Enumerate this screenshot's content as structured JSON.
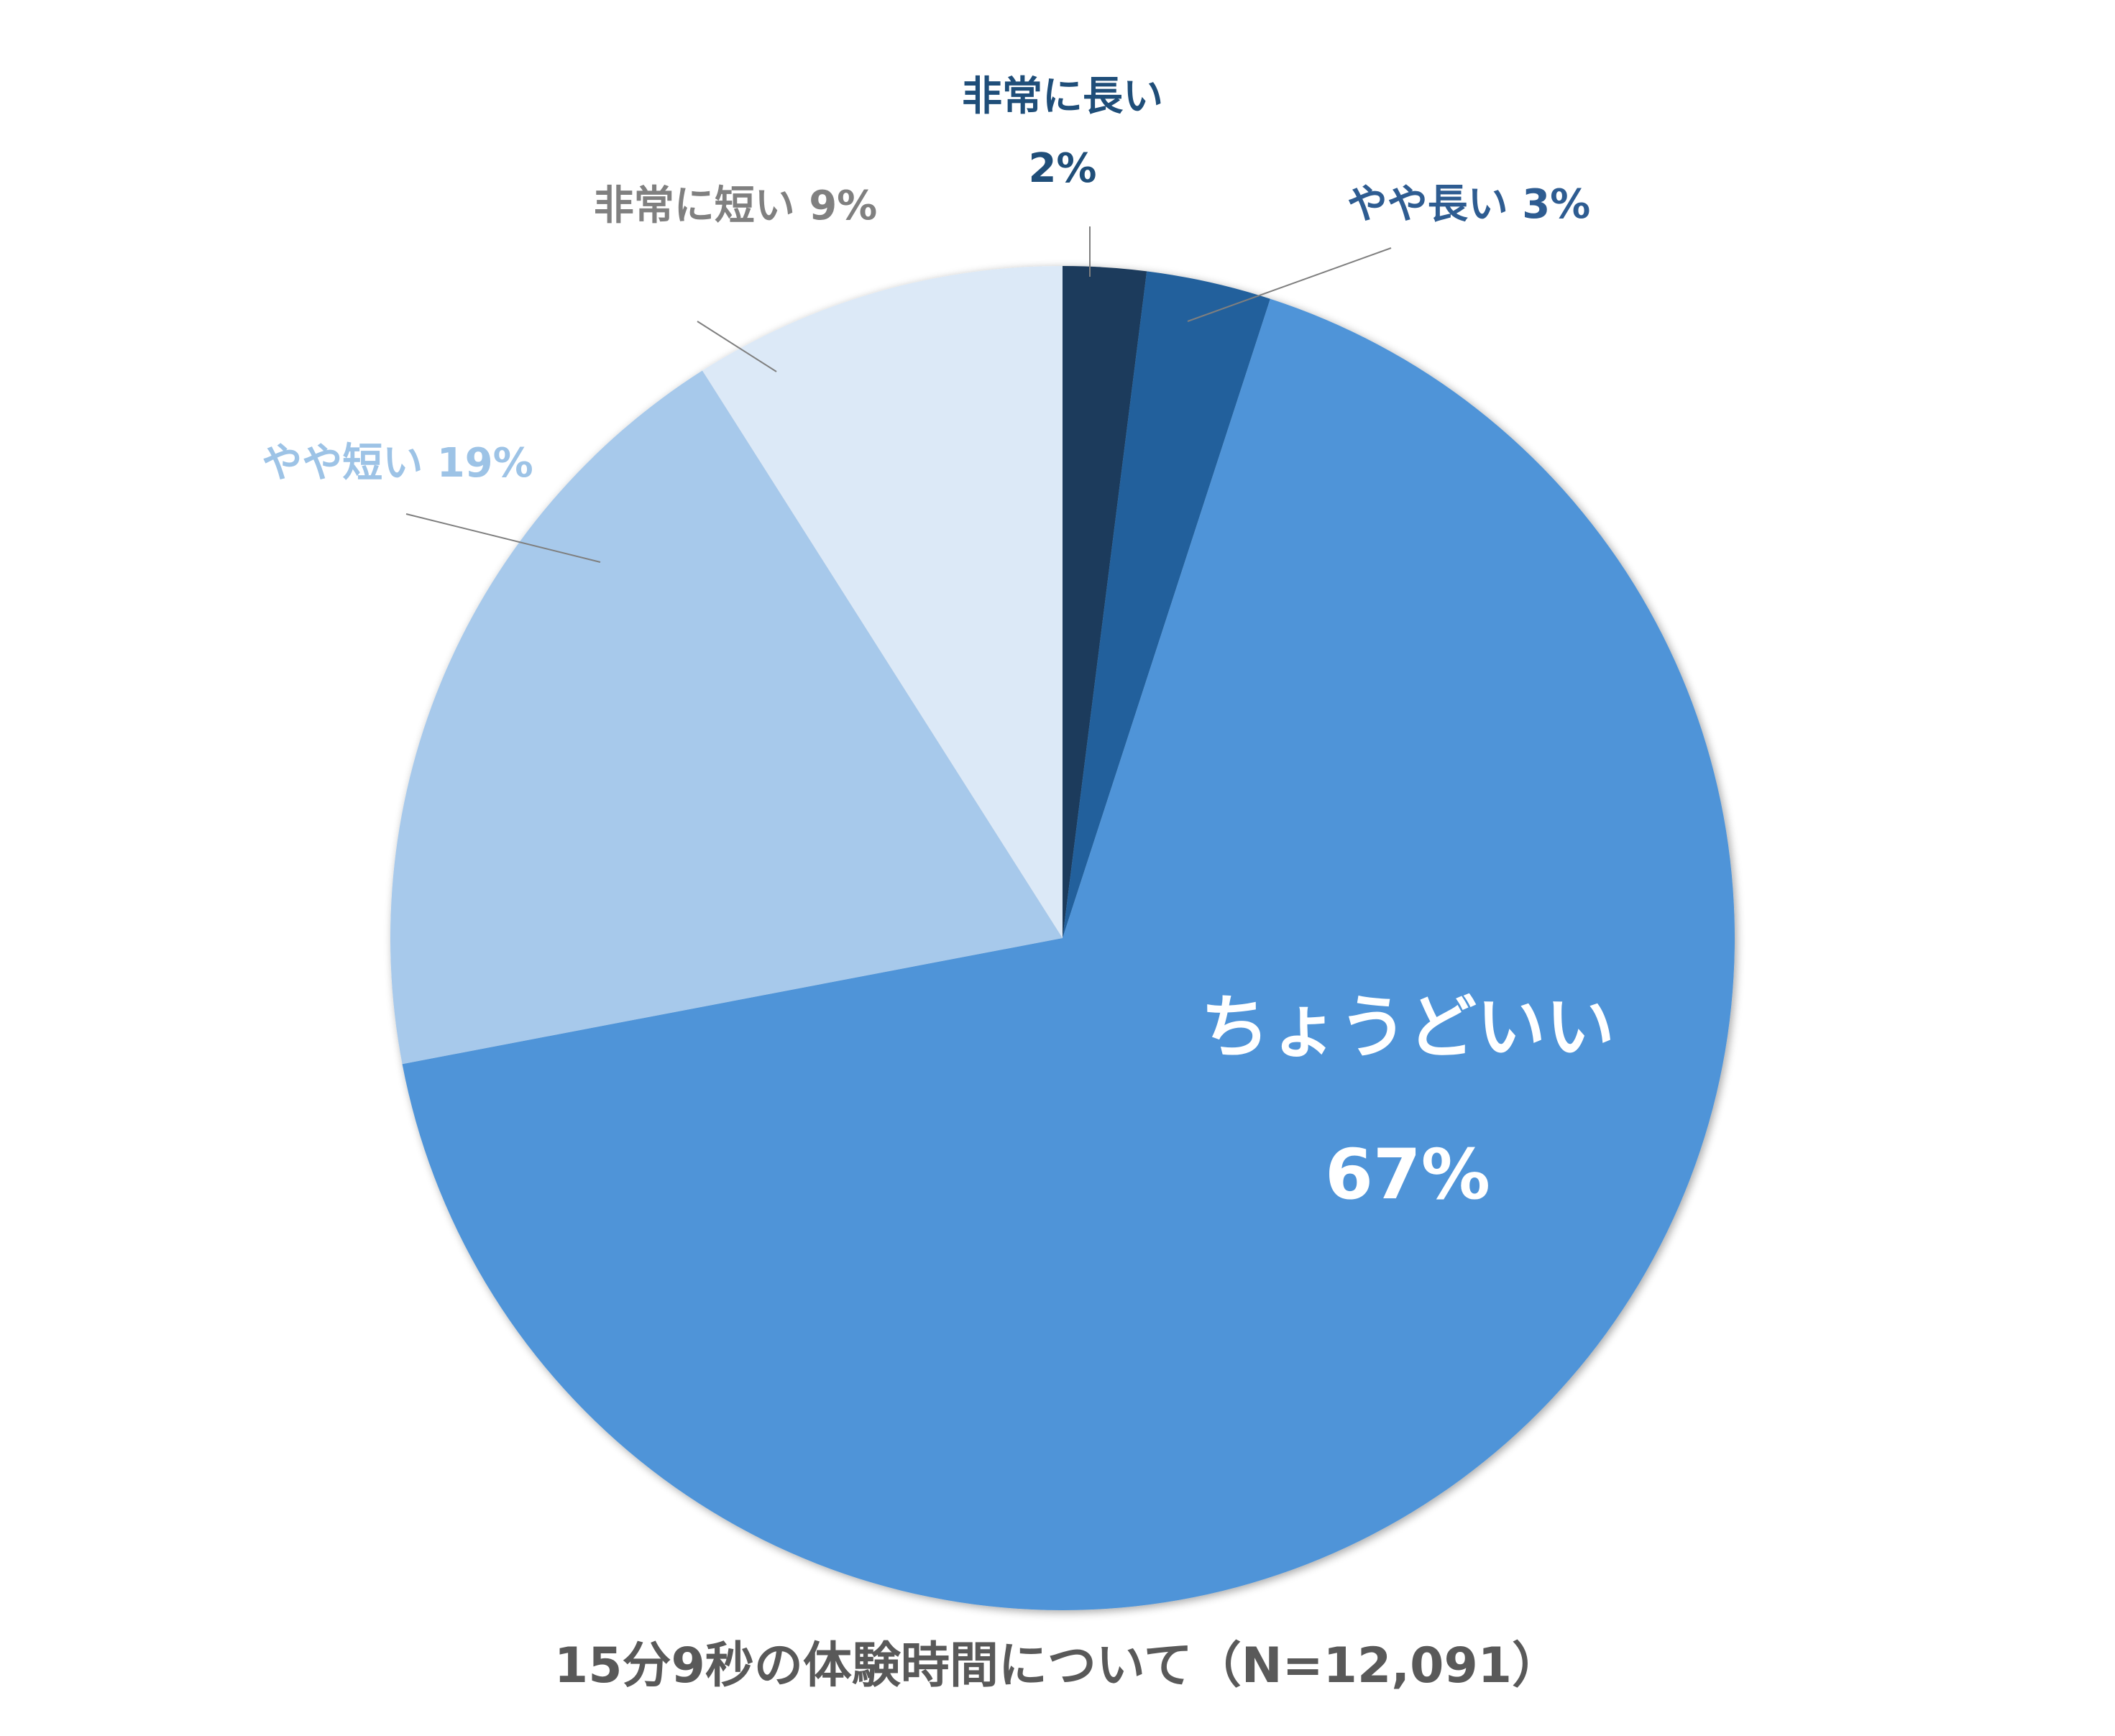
{
  "chart_data": {
    "type": "pie",
    "title": "15分9秒の体験時間について（N=12,091）",
    "start": "top",
    "direction": "clockwise",
    "slices": [
      {
        "name": "非常に長い",
        "value": 2,
        "label": "2%",
        "color": "#1a3a5c",
        "label_color": "#1f4e79"
      },
      {
        "name": "やや長い",
        "value": 3,
        "label": "3%",
        "color": "#22609c",
        "label_color": "#2e5c91"
      },
      {
        "name": "ちょうどいい",
        "value": 67,
        "label": "67%",
        "color": "#4f94d8",
        "label_color": "#ffffff"
      },
      {
        "name": "やや短い",
        "value": 19,
        "label": "19%",
        "color": "#a7c9eb",
        "label_color": "#9dc3e6"
      },
      {
        "name": "非常に短い",
        "value": 9,
        "label": "9%",
        "color": "#dce9f7",
        "label_color": "#808080"
      }
    ],
    "leader_line_color": "#7f7f7f"
  }
}
